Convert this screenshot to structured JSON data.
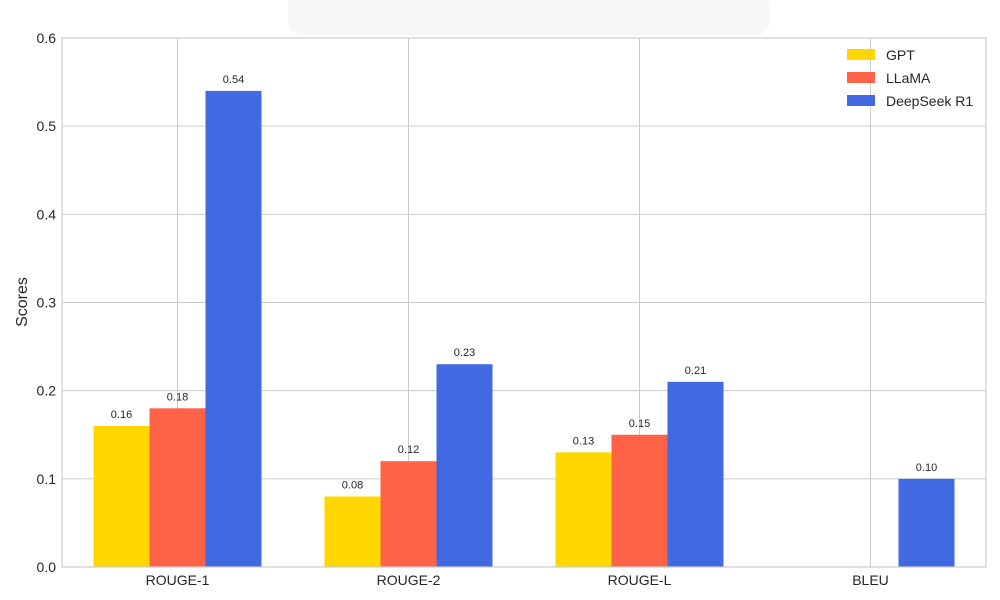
{
  "chart_data": {
    "type": "bar",
    "title": "",
    "xlabel": "",
    "ylabel": "Scores",
    "ylim": [
      0,
      0.6
    ],
    "yticks": [
      "0.0",
      "0.1",
      "0.2",
      "0.3",
      "0.4",
      "0.5",
      "0.6"
    ],
    "categories": [
      "ROUGE-1",
      "ROUGE-2",
      "ROUGE-L",
      "BLEU"
    ],
    "series": [
      {
        "name": "GPT",
        "color": "#FFD700",
        "values": [
          0.16,
          0.08,
          0.13,
          0
        ]
      },
      {
        "name": "LLaMA",
        "color": "#FF6347",
        "values": [
          0.18,
          0.12,
          0.15,
          0
        ]
      },
      {
        "name": "DeepSeek R1",
        "color": "#4169E1",
        "values": [
          0.54,
          0.23,
          0.21,
          0.1
        ]
      }
    ],
    "grid": true,
    "legend_position": "top-right"
  }
}
